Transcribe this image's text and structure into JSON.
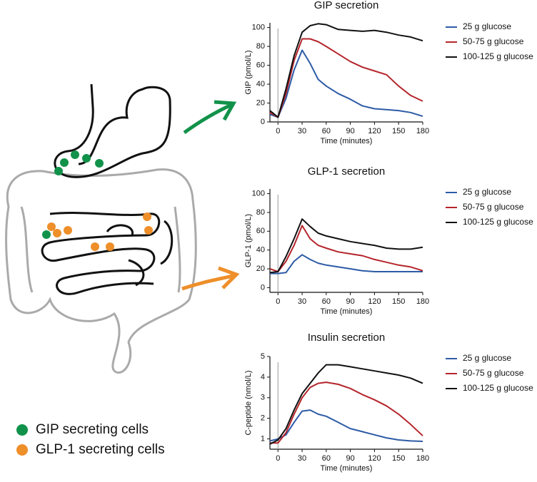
{
  "chart_data": [
    {
      "type": "line",
      "title": "GIP secretion",
      "x_label": "Time (minutes)",
      "y_label": "GIP (pmol/L)",
      "x": [
        -10,
        0,
        10,
        20,
        30,
        40,
        50,
        60,
        75,
        90,
        105,
        120,
        135,
        150,
        165,
        180
      ],
      "xlim": [
        -10,
        180
      ],
      "xticks": [
        0,
        30,
        60,
        90,
        120,
        150,
        180
      ],
      "ylim": [
        0,
        105
      ],
      "yticks": [
        0,
        20,
        40,
        60,
        80,
        100
      ],
      "series": [
        {
          "name": "25 g glucose",
          "color": "#2d5ba6",
          "values": [
            8,
            5,
            25,
            55,
            76,
            62,
            45,
            38,
            30,
            24,
            17,
            14,
            13,
            12,
            10,
            6
          ]
        },
        {
          "name": "50-75 g glucose",
          "color": "#b5252b",
          "values": [
            10,
            5,
            30,
            65,
            88,
            88,
            85,
            80,
            72,
            64,
            58,
            54,
            50,
            38,
            28,
            22
          ]
        },
        {
          "name": "100-125 g glucose",
          "color": "#111111",
          "values": [
            12,
            5,
            35,
            70,
            95,
            102,
            104,
            103,
            98,
            97,
            96,
            97,
            95,
            92,
            90,
            86
          ]
        }
      ]
    },
    {
      "type": "line",
      "title": "GLP-1 secretion",
      "x_label": "Time (minutes)",
      "y_label": "GLP-1 (pmol/L)",
      "x": [
        -10,
        0,
        10,
        20,
        30,
        40,
        50,
        60,
        75,
        90,
        105,
        120,
        135,
        150,
        165,
        180
      ],
      "xlim": [
        -10,
        180
      ],
      "xticks": [
        0,
        30,
        60,
        90,
        120,
        150,
        180
      ],
      "ylim": [
        -5,
        105
      ],
      "yticks": [
        0,
        20,
        40,
        60,
        80,
        100
      ],
      "series": [
        {
          "name": "25 g glucose",
          "color": "#2d5ba6",
          "values": [
            15,
            15,
            16,
            28,
            35,
            30,
            26,
            24,
            22,
            20,
            18,
            17,
            17,
            17,
            17,
            17
          ]
        },
        {
          "name": "50-75 g glucose",
          "color": "#b5252b",
          "values": [
            20,
            17,
            28,
            45,
            66,
            52,
            45,
            42,
            38,
            36,
            34,
            30,
            27,
            24,
            22,
            18
          ]
        },
        {
          "name": "100-125 g glucose",
          "color": "#111111",
          "values": [
            16,
            17,
            33,
            52,
            73,
            65,
            58,
            55,
            52,
            49,
            47,
            45,
            42,
            41,
            41,
            43
          ]
        }
      ]
    },
    {
      "type": "line",
      "title": "Insulin secretion",
      "x_label": "Time (minutes)",
      "y_label": "C-peptide (nmol/L)",
      "x": [
        -10,
        0,
        10,
        20,
        30,
        40,
        50,
        60,
        75,
        90,
        105,
        120,
        135,
        150,
        165,
        180
      ],
      "xlim": [
        -10,
        180
      ],
      "xticks": [
        0,
        30,
        60,
        90,
        120,
        150,
        180
      ],
      "ylim": [
        0.5,
        5
      ],
      "yticks": [
        1,
        2,
        3,
        4,
        5
      ],
      "series": [
        {
          "name": "25 g glucose",
          "color": "#2d5ba6",
          "values": [
            0.9,
            1.0,
            1.2,
            1.8,
            2.35,
            2.4,
            2.2,
            2.1,
            1.8,
            1.5,
            1.35,
            1.2,
            1.05,
            0.95,
            0.9,
            0.88
          ]
        },
        {
          "name": "50-75 g glucose",
          "color": "#b5252b",
          "values": [
            0.8,
            0.8,
            1.3,
            2.2,
            3.0,
            3.5,
            3.7,
            3.75,
            3.65,
            3.45,
            3.15,
            2.9,
            2.6,
            2.2,
            1.7,
            1.15
          ]
        },
        {
          "name": "100-125 g glucose",
          "color": "#111111",
          "values": [
            0.75,
            0.95,
            1.5,
            2.4,
            3.2,
            3.7,
            4.2,
            4.6,
            4.6,
            4.5,
            4.4,
            4.3,
            4.2,
            4.1,
            3.95,
            3.7
          ]
        }
      ]
    }
  ],
  "cell_legend": [
    {
      "label": "GIP secreting cells",
      "color": "#11924a"
    },
    {
      "label": "GLP-1 secreting cells",
      "color": "#ee8f2a"
    }
  ]
}
